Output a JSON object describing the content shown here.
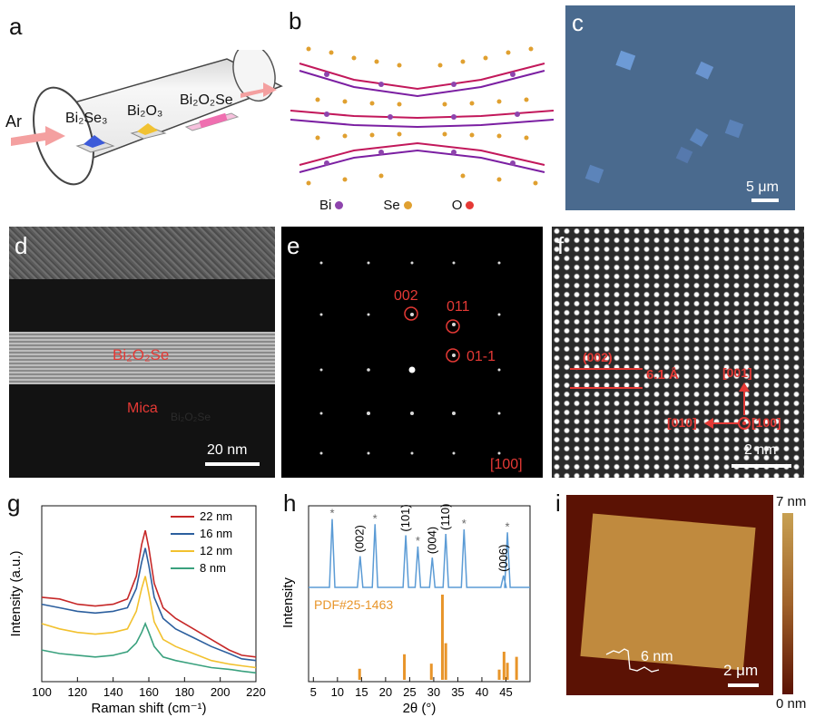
{
  "panels": {
    "a": {
      "letter": "a",
      "gas": "Ar",
      "precursors": [
        "Bi₂Se₃",
        "Bi₂O₃",
        "Bi₂O₂Se"
      ]
    },
    "b": {
      "letter": "b",
      "legend": [
        {
          "label": "Bi",
          "color": "#8e44ad"
        },
        {
          "label": "Se",
          "color": "#e0a030"
        },
        {
          "label": "O",
          "color": "#e53935"
        }
      ]
    },
    "c": {
      "letter": "c",
      "scale": "5 μm",
      "bg_color": "#4a6a8e"
    },
    "d": {
      "letter": "d",
      "layer_label": "Bi₂O₂Se",
      "substrate_label": "Mica",
      "ghost_text": "Bi₂O₂Se",
      "scale": "20 nm"
    },
    "e": {
      "letter": "e",
      "spots": [
        "002",
        "011",
        "01-1"
      ],
      "zone_axis": "[100]"
    },
    "f": {
      "letter": "f",
      "plane": "(002)",
      "spacing": "6.1 Å",
      "dir_up": "[001]",
      "dir_left": "[010]",
      "dir_center": "[100]",
      "scale": "2 nm"
    },
    "g": {
      "letter": "g"
    },
    "h": {
      "letter": "h"
    },
    "i": {
      "letter": "i",
      "colorbar_max": "7 nm",
      "colorbar_min": "0 nm",
      "height_label": "6 nm",
      "scale": "2 μm"
    }
  },
  "chart_data": [
    {
      "panel": "g",
      "type": "line",
      "xlabel": "Raman shift (cm⁻¹)",
      "ylabel": "Intensity (a.u.)",
      "xlim": [
        100,
        220
      ],
      "xticks": [
        100,
        120,
        140,
        160,
        180,
        200,
        220
      ],
      "legend_position": "top-right",
      "series": [
        {
          "name": "22 nm",
          "color": "#c62828",
          "x": [
            100,
            110,
            120,
            130,
            140,
            148,
            153,
            156,
            158,
            160,
            163,
            168,
            175,
            185,
            195,
            205,
            212,
            220
          ],
          "y": [
            0.48,
            0.47,
            0.44,
            0.43,
            0.44,
            0.47,
            0.6,
            0.78,
            0.86,
            0.76,
            0.56,
            0.42,
            0.36,
            0.3,
            0.24,
            0.18,
            0.15,
            0.14
          ]
        },
        {
          "name": "16 nm",
          "color": "#2c5f9e",
          "x": [
            100,
            110,
            120,
            130,
            140,
            148,
            153,
            156,
            158,
            160,
            163,
            168,
            175,
            185,
            195,
            205,
            212,
            220
          ],
          "y": [
            0.44,
            0.42,
            0.4,
            0.39,
            0.4,
            0.42,
            0.53,
            0.68,
            0.76,
            0.66,
            0.48,
            0.36,
            0.3,
            0.25,
            0.2,
            0.16,
            0.13,
            0.12
          ]
        },
        {
          "name": "12 nm",
          "color": "#f2c12e",
          "x": [
            100,
            110,
            120,
            130,
            140,
            148,
            153,
            156,
            158,
            160,
            163,
            168,
            175,
            185,
            195,
            205,
            212,
            220
          ],
          "y": [
            0.33,
            0.3,
            0.28,
            0.27,
            0.28,
            0.3,
            0.4,
            0.53,
            0.6,
            0.5,
            0.34,
            0.24,
            0.2,
            0.16,
            0.12,
            0.1,
            0.09,
            0.08
          ]
        },
        {
          "name": "8 nm",
          "color": "#3aa17e",
          "x": [
            100,
            110,
            120,
            130,
            140,
            148,
            153,
            156,
            158,
            160,
            163,
            168,
            175,
            185,
            195,
            205,
            212,
            220
          ],
          "y": [
            0.18,
            0.16,
            0.15,
            0.14,
            0.15,
            0.17,
            0.22,
            0.28,
            0.33,
            0.28,
            0.2,
            0.14,
            0.12,
            0.1,
            0.08,
            0.07,
            0.06,
            0.05
          ]
        }
      ]
    },
    {
      "panel": "h",
      "type": "bar",
      "xlabel": "2θ (°)",
      "ylabel": "Intensity",
      "xlim": [
        4,
        50
      ],
      "xticks": [
        5,
        10,
        15,
        20,
        25,
        30,
        35,
        40,
        45
      ],
      "measured": {
        "color": "#5b9bd5",
        "peaks": [
          {
            "x": 8.9,
            "h": 0.92,
            "label": "*"
          },
          {
            "x": 14.7,
            "h": 0.42,
            "label": "(002)"
          },
          {
            "x": 17.8,
            "h": 0.85,
            "label": "*"
          },
          {
            "x": 24.2,
            "h": 0.7,
            "label": "(101)"
          },
          {
            "x": 26.7,
            "h": 0.55,
            "label": "*"
          },
          {
            "x": 29.7,
            "h": 0.4,
            "label": "(004)"
          },
          {
            "x": 32.5,
            "h": 0.72,
            "label": "(110)"
          },
          {
            "x": 36.3,
            "h": 0.78,
            "label": "*"
          },
          {
            "x": 44.5,
            "h": 0.16,
            "label": "(006)"
          },
          {
            "x": 45.3,
            "h": 0.74,
            "label": "*"
          }
        ]
      },
      "reference": {
        "name": "PDF#25-1463",
        "color": "#e8952a",
        "peaks": [
          {
            "x": 14.6,
            "h": 0.13
          },
          {
            "x": 23.9,
            "h": 0.3
          },
          {
            "x": 29.5,
            "h": 0.19
          },
          {
            "x": 31.8,
            "h": 1.0
          },
          {
            "x": 32.5,
            "h": 0.43
          },
          {
            "x": 43.6,
            "h": 0.12
          },
          {
            "x": 44.6,
            "h": 0.33
          },
          {
            "x": 45.3,
            "h": 0.2
          },
          {
            "x": 47.2,
            "h": 0.27
          }
        ]
      }
    }
  ]
}
